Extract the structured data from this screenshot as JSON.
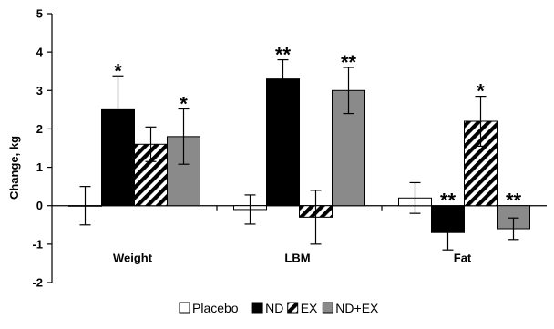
{
  "chart_data": {
    "type": "bar",
    "title": "",
    "xlabel": "",
    "ylabel": "Change, kg",
    "ylim": [
      -2,
      5
    ],
    "yticks": [
      -2,
      -1,
      0,
      1,
      2,
      3,
      4,
      5
    ],
    "grid": false,
    "legend_position": "bottom",
    "categories": [
      "Weight",
      "LBM",
      "Fat"
    ],
    "series": [
      {
        "name": "Placebo",
        "fill": "white",
        "values": [
          0.0,
          -0.1,
          0.2
        ],
        "errors": [
          0.5,
          0.38,
          0.4
        ],
        "significance": [
          "",
          "",
          ""
        ]
      },
      {
        "name": "ND",
        "fill": "black",
        "values": [
          2.5,
          3.3,
          -0.7
        ],
        "errors": [
          0.88,
          0.5,
          0.45
        ],
        "significance": [
          "*",
          "**",
          "**"
        ]
      },
      {
        "name": "EX",
        "fill": "hatch",
        "values": [
          1.6,
          -0.3,
          2.2
        ],
        "errors": [
          0.45,
          0.7,
          0.65
        ],
        "significance": [
          "",
          "",
          "*"
        ]
      },
      {
        "name": "ND+EX",
        "fill": "gray",
        "values": [
          1.8,
          3.0,
          -0.6
        ],
        "errors": [
          0.72,
          0.6,
          0.28
        ],
        "significance": [
          "*",
          "**",
          "**"
        ]
      }
    ],
    "colors": {
      "black": "#000000",
      "gray": "#8a8a8a",
      "white": "#ffffff",
      "axis": "#000000"
    }
  }
}
